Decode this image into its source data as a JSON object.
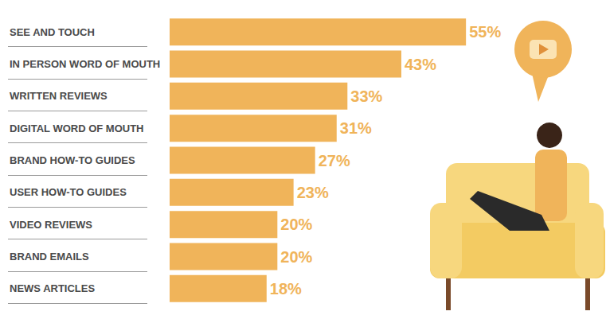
{
  "chart_data": {
    "type": "bar",
    "orientation": "horizontal",
    "categories": [
      "SEE AND TOUCH",
      "IN PERSON WORD OF MOUTH",
      "WRITTEN REVIEWS",
      "DIGITAL WORD OF MOUTH",
      "BRAND HOW-TO GUIDES",
      "USER HOW-TO GUIDES",
      "VIDEO REVIEWS",
      "BRAND EMAILS",
      "NEWS ARTICLES"
    ],
    "values": [
      55,
      43,
      33,
      31,
      27,
      23,
      20,
      20,
      18
    ],
    "value_labels": [
      "55%",
      "43%",
      "33%",
      "31%",
      "27%",
      "23%",
      "20%",
      "20%",
      "18%"
    ],
    "color": "#f0b45a",
    "xlim": [
      0,
      60
    ],
    "grid": false,
    "data_labels": true,
    "tick_labels": "y"
  }
}
